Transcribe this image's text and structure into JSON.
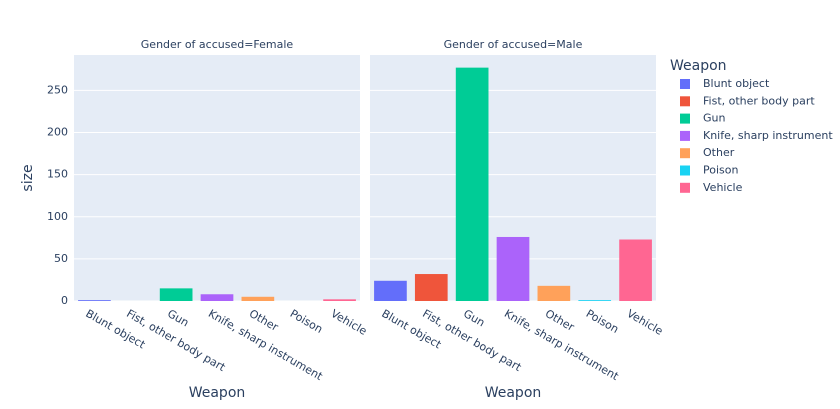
{
  "chart_data": {
    "type": "bar",
    "y_label": "size",
    "x_label": "Weapon",
    "legend_title": "Weapon",
    "categories": [
      "Blunt object",
      "Fist, other body part",
      "Gun",
      "Knife, sharp instrument",
      "Other",
      "Poison",
      "Vehicle"
    ],
    "colors": [
      "#636efa",
      "#EF553B",
      "#00cc96",
      "#ab63fa",
      "#FFA15A",
      "#19d3f3",
      "#FF6692"
    ],
    "facets": [
      {
        "title": "Gender of accused=Female",
        "values": [
          1,
          0,
          15,
          8,
          5,
          0,
          2
        ]
      },
      {
        "title": "Gender of accused=Male",
        "values": [
          24,
          32,
          277,
          76,
          18,
          1,
          73
        ]
      }
    ],
    "ylim": [
      0,
      292
    ],
    "yticks": [
      0,
      50,
      100,
      150,
      200,
      250
    ],
    "grid": true
  }
}
